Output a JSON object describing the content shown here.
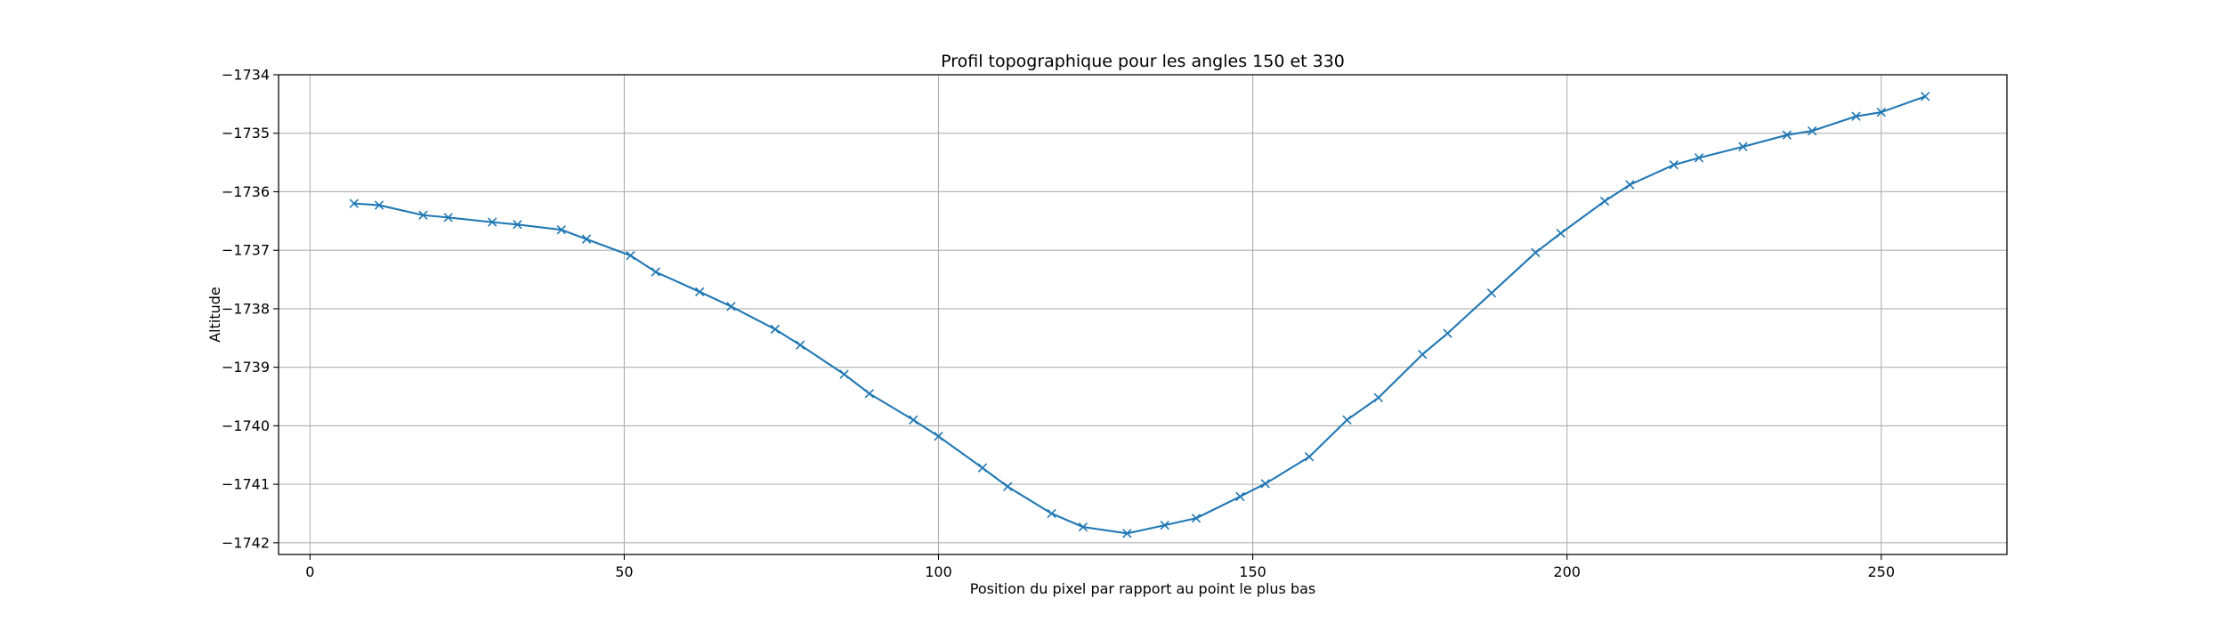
{
  "chart_data": {
    "type": "line",
    "title": "Profil topographique pour les angles 150 et 330",
    "xlabel": "Position du pixel par rapport au point le plus bas",
    "ylabel": "Altitude",
    "xlim": [
      -5,
      270
    ],
    "ylim": [
      -1742.2,
      -1734
    ],
    "x_ticks": [
      0,
      50,
      100,
      150,
      200,
      250
    ],
    "y_ticks": [
      -1734,
      -1735,
      -1736,
      -1737,
      -1738,
      -1739,
      -1740,
      -1741,
      -1742
    ],
    "x_tick_labels": [
      "0",
      "50",
      "100",
      "150",
      "200",
      "250"
    ],
    "y_tick_labels": [
      "−1734",
      "−1735",
      "−1736",
      "−1737",
      "−1738",
      "−1739",
      "−1740",
      "−1741",
      "−1742"
    ],
    "grid": true,
    "marker": "x",
    "color": "#1f77b4",
    "x": [
      7,
      11,
      18,
      22,
      29,
      33,
      40,
      44,
      51,
      55,
      62,
      67,
      74,
      78,
      85,
      89,
      96,
      100,
      107,
      111,
      118,
      123,
      130,
      136,
      141,
      148,
      152,
      159,
      165,
      170,
      177,
      181,
      188,
      195,
      199,
      206,
      210,
      217,
      221,
      228,
      235,
      239,
      246,
      250,
      257
    ],
    "y": [
      -1736.2,
      -1736.23,
      -1736.4,
      -1736.44,
      -1736.52,
      -1736.56,
      -1736.65,
      -1736.81,
      -1737.09,
      -1737.37,
      -1737.71,
      -1737.96,
      -1738.35,
      -1738.62,
      -1739.12,
      -1739.45,
      -1739.9,
      -1740.18,
      -1740.72,
      -1741.04,
      -1741.5,
      -1741.73,
      -1741.84,
      -1741.7,
      -1741.58,
      -1741.21,
      -1740.99,
      -1740.53,
      -1739.9,
      -1739.52,
      -1738.78,
      -1738.42,
      -1737.73,
      -1737.04,
      -1736.71,
      -1736.16,
      -1735.88,
      -1735.54,
      -1735.42,
      -1735.23,
      -1735.03,
      -1734.96,
      -1734.71,
      -1734.64,
      -1734.37
    ]
  }
}
